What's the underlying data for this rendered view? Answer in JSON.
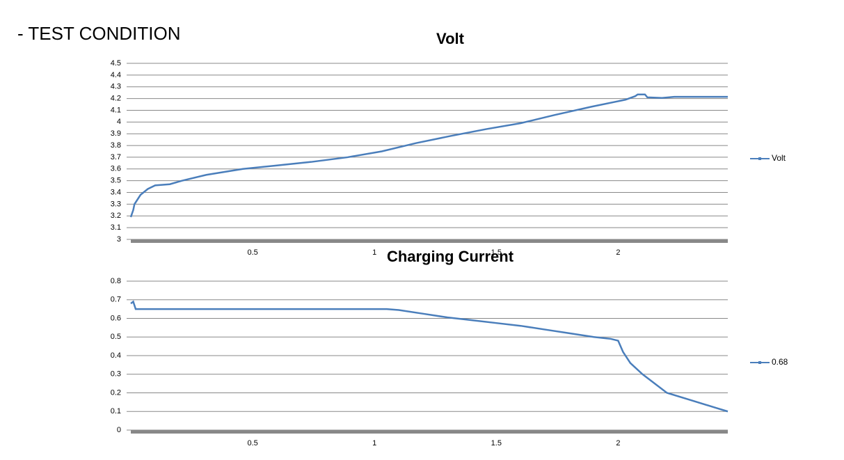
{
  "heading": "- TEST CONDITION",
  "chart_data": [
    {
      "type": "line",
      "title": "Volt",
      "x": [
        0.0,
        0.01,
        0.015,
        0.04,
        0.07,
        0.1,
        0.16,
        0.21,
        0.31,
        0.46,
        0.6,
        0.74,
        0.89,
        1.03,
        1.17,
        1.31,
        1.46,
        1.6,
        1.74,
        1.89,
        2.03,
        2.07,
        2.08,
        2.11,
        2.12,
        2.18,
        2.23,
        2.45
      ],
      "series": [
        {
          "name": "Volt",
          "color": "#4a7ebb",
          "values": [
            3.19,
            3.25,
            3.3,
            3.38,
            3.43,
            3.46,
            3.47,
            3.5,
            3.55,
            3.6,
            3.63,
            3.66,
            3.7,
            3.75,
            3.82,
            3.88,
            3.94,
            3.99,
            4.06,
            4.13,
            4.19,
            4.22,
            4.235,
            4.235,
            4.21,
            4.205,
            4.215,
            4.215
          ]
        }
      ],
      "xlim": [
        0.0,
        2.45
      ],
      "xticks": [
        0.5,
        1,
        1.5,
        2
      ],
      "ylim": [
        3,
        4.5
      ],
      "yticks": [
        3,
        3.1,
        3.2,
        3.3,
        3.4,
        3.5,
        3.6,
        3.7,
        3.8,
        3.9,
        4,
        4.1,
        4.2,
        4.3,
        4.4,
        4.5
      ],
      "grid": true,
      "legend": "right"
    },
    {
      "type": "line",
      "title": "Charging Current",
      "x": [
        0.0,
        0.01,
        0.02,
        0.25,
        1.05,
        1.1,
        1.2,
        1.3,
        1.4,
        1.5,
        1.6,
        1.7,
        1.8,
        1.9,
        1.97,
        2.0,
        2.02,
        2.05,
        2.1,
        2.15,
        2.2,
        2.3,
        2.4,
        2.45
      ],
      "series": [
        {
          "name": "0.68",
          "color": "#4a7ebb",
          "values": [
            0.68,
            0.69,
            0.65,
            0.65,
            0.65,
            0.645,
            0.625,
            0.605,
            0.59,
            0.575,
            0.56,
            0.54,
            0.52,
            0.5,
            0.49,
            0.48,
            0.42,
            0.36,
            0.3,
            0.25,
            0.2,
            0.16,
            0.12,
            0.1
          ]
        }
      ],
      "xlim": [
        0.0,
        2.45
      ],
      "xticks": [
        0.5,
        1,
        1.5,
        2
      ],
      "ylim": [
        0,
        0.8
      ],
      "yticks": [
        0,
        0.1,
        0.2,
        0.3,
        0.4,
        0.5,
        0.6,
        0.7,
        0.8
      ],
      "grid": true,
      "legend": "right"
    }
  ]
}
